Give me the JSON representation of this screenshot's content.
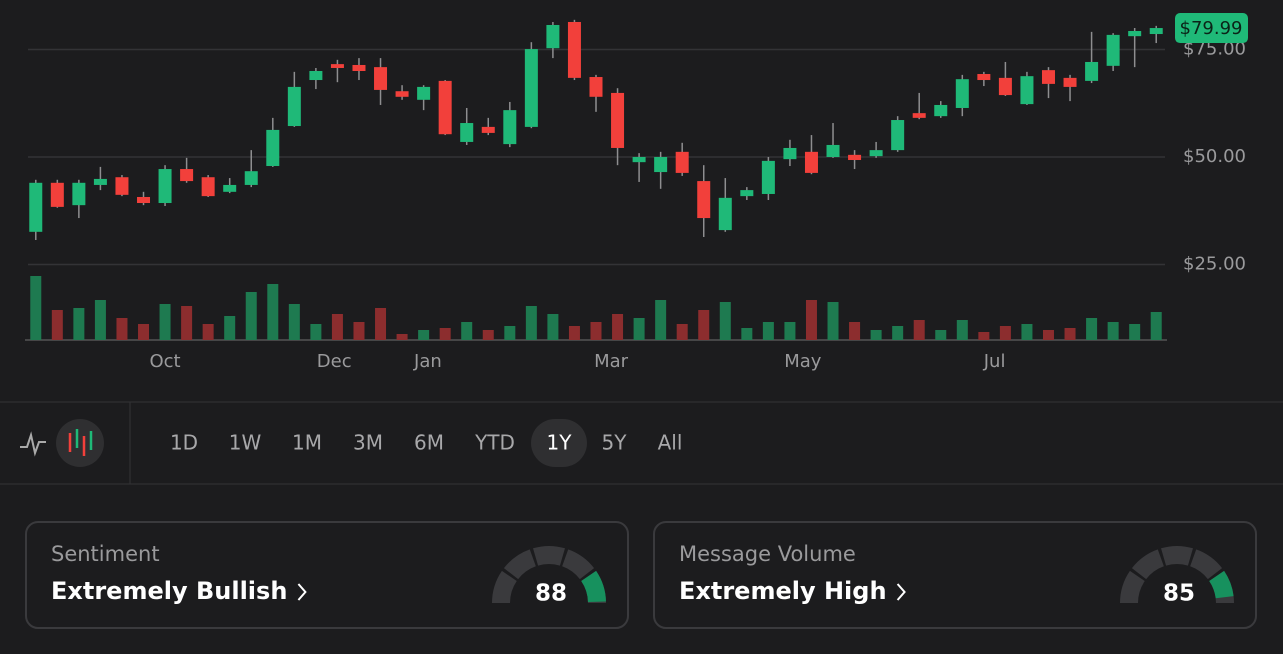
{
  "chart_data": {
    "type": "candlestick",
    "open": [
      32.6,
      44.0,
      38.8,
      43.5,
      45.3,
      40.7,
      39.3,
      47.2,
      45.3,
      41.9,
      43.5,
      47.9,
      57.2,
      67.9,
      71.6,
      71.4,
      70.9,
      65.3,
      63.3,
      67.7,
      53.5,
      57.0,
      53.0,
      57.0,
      75.3,
      81.4,
      68.6,
      64.9,
      48.8,
      46.5,
      51.2,
      44.4,
      33.0,
      40.9,
      41.4,
      49.5,
      51.2,
      50.0,
      50.5,
      50.2,
      51.6,
      60.2,
      59.5,
      61.4,
      69.3,
      68.4,
      62.3,
      70.2,
      68.4,
      67.7,
      71.2,
      78.1,
      78.6
    ],
    "high": [
      44.7,
      44.7,
      44.7,
      47.7,
      45.8,
      41.9,
      48.1,
      49.8,
      45.8,
      45.1,
      51.6,
      59.1,
      69.8,
      70.7,
      72.6,
      73.0,
      73.0,
      66.7,
      66.7,
      67.9,
      61.4,
      59.1,
      62.8,
      76.7,
      81.4,
      81.9,
      69.1,
      66.0,
      50.9,
      51.2,
      53.3,
      48.1,
      45.1,
      43.0,
      50.0,
      54.0,
      55.1,
      57.9,
      51.6,
      53.5,
      59.5,
      64.9,
      63.0,
      69.1,
      69.8,
      72.1,
      69.8,
      70.9,
      69.1,
      79.1,
      78.8,
      80.0,
      80.5
    ],
    "low": [
      30.7,
      38.2,
      35.8,
      42.3,
      40.9,
      38.8,
      38.6,
      44.0,
      40.7,
      41.6,
      43.0,
      47.7,
      57.0,
      65.8,
      67.4,
      67.9,
      62.1,
      63.3,
      60.9,
      55.1,
      52.8,
      55.1,
      52.3,
      56.7,
      73.0,
      67.9,
      60.5,
      48.1,
      44.2,
      42.6,
      45.6,
      31.4,
      32.6,
      40.0,
      40.0,
      47.9,
      46.0,
      49.8,
      47.2,
      49.8,
      51.2,
      58.8,
      59.1,
      59.5,
      66.5,
      64.2,
      62.1,
      63.7,
      63.0,
      67.2,
      70.0,
      70.9,
      76.5
    ],
    "close": [
      44.0,
      38.4,
      44.0,
      44.9,
      41.2,
      39.3,
      47.2,
      44.4,
      40.9,
      43.5,
      46.7,
      56.3,
      66.3,
      70.0,
      70.7,
      70.0,
      65.6,
      64.0,
      66.3,
      55.3,
      57.9,
      55.6,
      60.9,
      75.1,
      80.7,
      68.4,
      64.0,
      52.1,
      50.0,
      50.0,
      46.3,
      35.8,
      40.5,
      42.3,
      49.1,
      52.1,
      46.3,
      52.8,
      49.3,
      51.6,
      58.6,
      59.1,
      62.1,
      68.1,
      67.9,
      64.4,
      68.8,
      67.0,
      66.3,
      72.1,
      78.4,
      79.3,
      79.99
    ],
    "volume": [
      64,
      30,
      32,
      40,
      22,
      16,
      36,
      34,
      16,
      24,
      48,
      56,
      36,
      16,
      26,
      18,
      32,
      6,
      10,
      12,
      18,
      10,
      14,
      34,
      26,
      14,
      18,
      26,
      22,
      40,
      16,
      30,
      38,
      12,
      18,
      18,
      40,
      38,
      18,
      10,
      14,
      20,
      10,
      20,
      8,
      14,
      16,
      10,
      12,
      22,
      18,
      16,
      28
    ],
    "volume_lim": [
      0,
      70
    ],
    "up_color": "#1fb978",
    "down_color": "#f2403b",
    "volume_up_color": "#1e7a50",
    "volume_down_color": "#8c2d2e",
    "ylim": [
      20,
      85
    ],
    "yticks": [
      {
        "value": 25,
        "label": "$25.00"
      },
      {
        "value": 50,
        "label": "$50.00"
      },
      {
        "value": 75,
        "label": "$75.00"
      }
    ],
    "xlim": [
      -0.5,
      52.5
    ],
    "xticks": [
      {
        "value": 6,
        "label": "Oct"
      },
      {
        "value": 13.85,
        "label": "Dec"
      },
      {
        "value": 18.2,
        "label": "Jan"
      },
      {
        "value": 26.7,
        "label": "Mar"
      },
      {
        "value": 35.6,
        "label": "May"
      },
      {
        "value": 44.5,
        "label": "Jul"
      }
    ],
    "last_price": {
      "value": 79.99,
      "label": "$79.99"
    },
    "grid": true
  },
  "controls": {
    "timeframes": [
      "1D",
      "1W",
      "1M",
      "3M",
      "6M",
      "YTD",
      "1Y",
      "5Y",
      "All"
    ],
    "selected": 6
  },
  "cards": [
    {
      "label": "Sentiment",
      "title": "Extremely Bullish",
      "score": 88
    },
    {
      "label": "Message Volume",
      "title": "Extremely High",
      "score": 85
    }
  ]
}
